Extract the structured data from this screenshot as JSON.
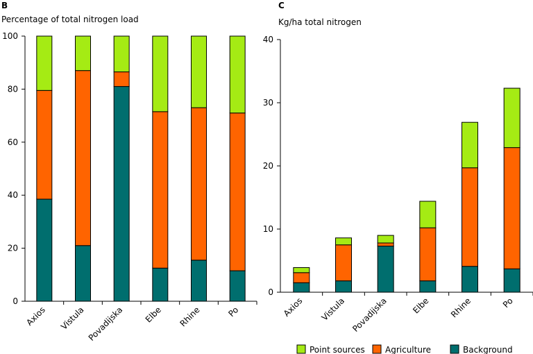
{
  "colors": {
    "Point sources": "#a5eb14",
    "Agriculture": "#ff6400",
    "Background": "#006e6e"
  },
  "legend": {
    "items": [
      {
        "label": "Point sources",
        "color": "#a5eb14"
      },
      {
        "label": "Agriculture",
        "color": "#ff6400"
      },
      {
        "label": "Background",
        "color": "#006e6e"
      }
    ]
  },
  "chart_data": [
    {
      "panel": "B",
      "type": "bar",
      "stacked": true,
      "title": "Percentage of total nitrogen load",
      "categories": [
        "Axios",
        "Vistula",
        "Povadijska",
        "Elbe",
        "Rhine",
        "Po"
      ],
      "series": [
        {
          "name": "Background",
          "values": [
            38.5,
            21,
            81,
            12.5,
            15.5,
            11.5
          ]
        },
        {
          "name": "Agriculture",
          "values": [
            41,
            66,
            5.5,
            59,
            57.5,
            59.5
          ]
        },
        {
          "name": "Point sources",
          "values": [
            20.5,
            13,
            13.5,
            28.5,
            27,
            29
          ]
        }
      ],
      "ylim": [
        0,
        100
      ],
      "yticks": [
        0,
        20,
        40,
        60,
        80,
        100
      ],
      "grid": false
    },
    {
      "panel": "C",
      "type": "bar",
      "stacked": true,
      "title": "Kg/ha total nitrogen",
      "categories": [
        "Axios",
        "Vistula",
        "Povadijska",
        "Elbe",
        "Rhine",
        "Po"
      ],
      "series": [
        {
          "name": "Background",
          "values": [
            1.5,
            1.8,
            7.3,
            1.8,
            4.1,
            3.7
          ]
        },
        {
          "name": "Agriculture",
          "values": [
            1.6,
            5.7,
            0.5,
            8.4,
            15.6,
            19.2
          ]
        },
        {
          "name": "Point sources",
          "values": [
            0.8,
            1.1,
            1.2,
            4.2,
            7.2,
            9.4
          ]
        }
      ],
      "ylim": [
        0,
        40
      ],
      "yticks": [
        0,
        10,
        20,
        30,
        40
      ],
      "grid": false,
      "legend_position": "bottom"
    }
  ]
}
